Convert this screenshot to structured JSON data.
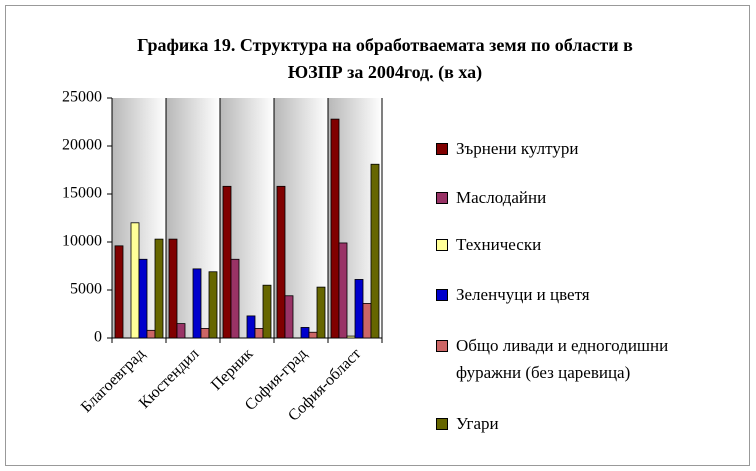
{
  "chart_data": {
    "type": "bar",
    "title": "Графика 19. Структура на обработваемата земя по области в ЮЗПР за 2004год. (в ха)",
    "categories": [
      "Благоевград",
      "Кюстендил",
      "Перник",
      "София-град",
      "София-област"
    ],
    "series": [
      {
        "name": "Зърнени култури",
        "color": "#800000",
        "values": [
          9600,
          10300,
          15800,
          15800,
          22800
        ]
      },
      {
        "name": "Маслодайни",
        "color": "#993366",
        "values": [
          0,
          1500,
          8200,
          4400,
          9900
        ]
      },
      {
        "name": "Технически",
        "color": "#ffff99",
        "values": [
          12000,
          0,
          0,
          0,
          200
        ]
      },
      {
        "name": "Зеленчуци и цветя",
        "color": "#0000cc",
        "values": [
          8200,
          7200,
          2300,
          1100,
          6100
        ]
      },
      {
        "name": "Общо ливади и едногодишни фуражни (без царевица)",
        "color": "#cc6666",
        "values": [
          800,
          1000,
          1000,
          600,
          3600
        ]
      },
      {
        "name": "Угари",
        "color": "#666600",
        "values": [
          10300,
          6900,
          5500,
          5300,
          18100
        ]
      }
    ],
    "ylim": [
      0,
      25000
    ],
    "yticks": [
      0,
      5000,
      10000,
      15000,
      20000,
      25000
    ]
  }
}
